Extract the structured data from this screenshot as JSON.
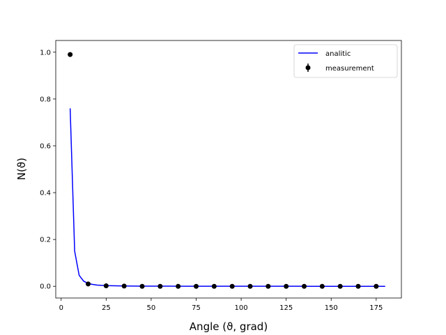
{
  "chart_data": {
    "type": "line",
    "title": "",
    "xlabel": "Angle (ϑ, grad)",
    "ylabel": "N(ϑ)",
    "xlim": [
      -3,
      189
    ],
    "ylim": [
      -0.05,
      1.05
    ],
    "x_ticks": [
      0,
      25,
      50,
      75,
      100,
      125,
      150,
      175
    ],
    "y_ticks": [
      0.0,
      0.2,
      0.4,
      0.6,
      0.8,
      1.0
    ],
    "x_tick_labels": [
      "0",
      "25",
      "50",
      "75",
      "100",
      "125",
      "150",
      "175"
    ],
    "y_tick_labels": [
      "0.0",
      "0.2",
      "0.4",
      "0.6",
      "0.8",
      "1.0"
    ],
    "grid": false,
    "legend_position": "top-right",
    "series": [
      {
        "name": "analitic",
        "kind": "line",
        "color": "#0000ff",
        "x": [
          5,
          7.5,
          10,
          12.5,
          15,
          17.5,
          20,
          22.5,
          25,
          30,
          35,
          40,
          45,
          50,
          60,
          70,
          80,
          90,
          100,
          110,
          120,
          130,
          140,
          150,
          160,
          170,
          180
        ],
        "y": [
          0.76,
          0.15,
          0.047,
          0.022,
          0.012,
          0.008,
          0.005,
          0.004,
          0.003,
          0.002,
          0.0015,
          0.001,
          0.0008,
          0.0007,
          0.0005,
          0.0004,
          0.0003,
          0.0003,
          0.0002,
          0.0002,
          0.0002,
          0.0002,
          0.0001,
          0.0001,
          0.0001,
          0.0001,
          0.0001
        ]
      },
      {
        "name": "measurement",
        "kind": "errorbar",
        "color": "#000000",
        "x": [
          5,
          15,
          25,
          35,
          45,
          55,
          65,
          75,
          85,
          95,
          105,
          115,
          125,
          135,
          145,
          155,
          165,
          175
        ],
        "y": [
          0.99,
          0.01,
          0.002,
          0.001,
          0.0,
          0.0,
          0.0,
          0.0,
          0.0,
          0.0,
          0.0,
          0.0,
          0.0,
          0.0,
          0.0,
          0.0,
          0.0,
          0.0
        ]
      }
    ]
  }
}
